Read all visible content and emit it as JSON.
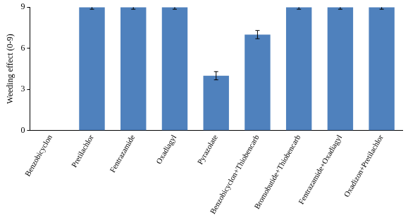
{
  "chart_data": {
    "type": "bar",
    "y_label": "Weeding effect (0-9)",
    "categories": [
      "Benzobicyclon",
      "Pretilachlor",
      "Fentrazamide",
      "Oxadiagyl",
      "Pyrazolate",
      "Benzobicyclon+Thiobencarb",
      "Bromobutide+Thiobencarb",
      "Fentrazamide+Oxadiagyl",
      "Oxadizon+Pretilachlor"
    ],
    "values": [
      0,
      9,
      9,
      9,
      4,
      7,
      9,
      9,
      9
    ],
    "errors": [
      0,
      0.15,
      0.15,
      0.15,
      0.3,
      0.3,
      0.15,
      0.15,
      0.15
    ],
    "color": "#4f81bd",
    "ylim": [
      0,
      9
    ],
    "yticks": [
      0,
      3,
      6,
      9
    ],
    "grid": false
  }
}
